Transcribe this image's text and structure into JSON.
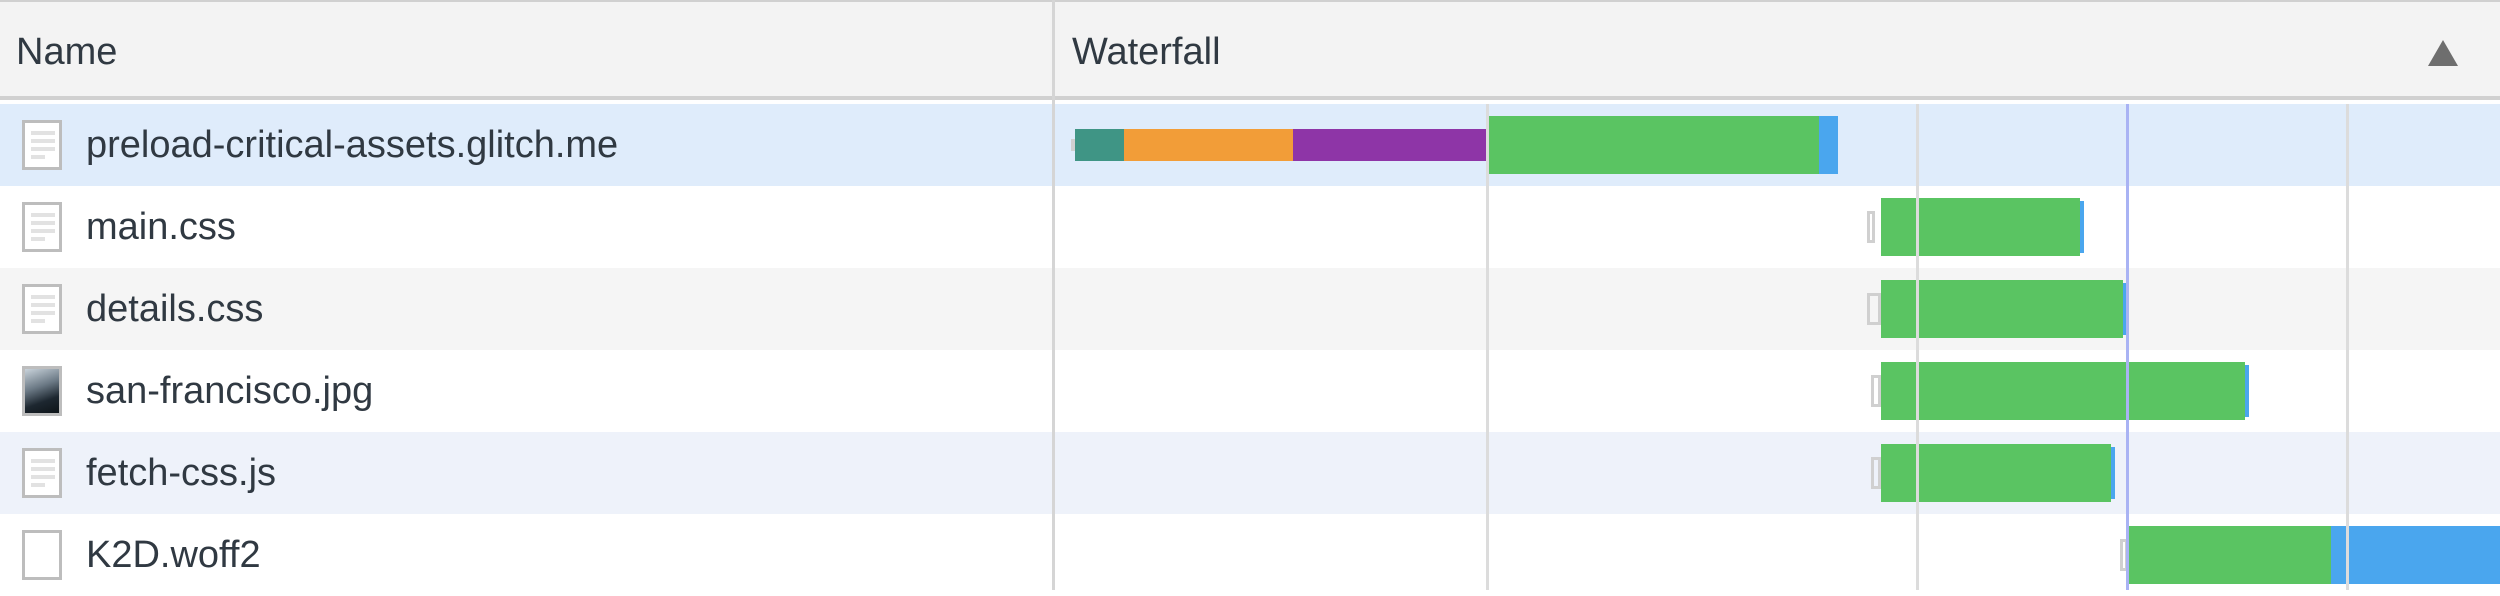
{
  "columns": {
    "name": "Name",
    "waterfall": "Waterfall"
  },
  "sort": {
    "icon": "sort-ascending-triangle-icon"
  },
  "rows": [
    {
      "name": "preload-critical-assets.glitch.me",
      "icon": "document-icon",
      "bg": "#dfecfb"
    },
    {
      "name": "main.css",
      "icon": "document-icon",
      "bg": "#ffffff"
    },
    {
      "name": "details.css",
      "icon": "document-icon",
      "bg": "#f5f5f5"
    },
    {
      "name": "san-francisco.jpg",
      "icon": "image-icon",
      "bg": "#ffffff"
    },
    {
      "name": "fetch-css.js",
      "icon": "document-icon",
      "bg": "#eef2fa"
    },
    {
      "name": "K2D.woff2",
      "icon": "blank-file-icon",
      "bg": "#ffffff"
    }
  ],
  "colors": {
    "queue": "#d0d0d0",
    "connect": "#3f9585",
    "ssl": "#f29d38",
    "request": "#8e35a7",
    "waiting": "#5ac462",
    "download": "#4aa6ee",
    "gridline": "#dcdcdc",
    "marker": "#a9b3f4"
  }
}
